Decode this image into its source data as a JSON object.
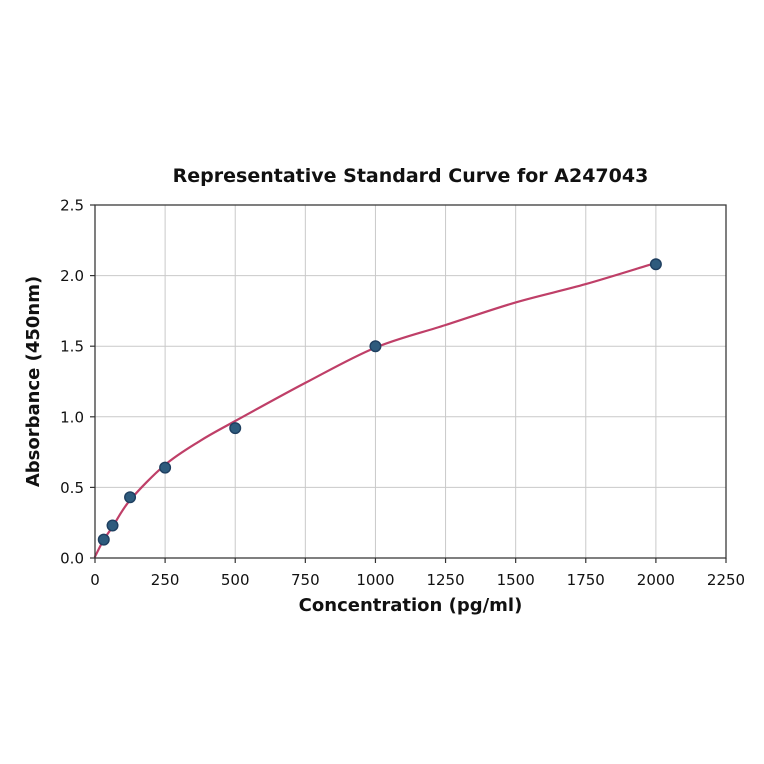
{
  "chart_data": {
    "type": "scatter",
    "title": "Representative Standard Curve for A247043",
    "xlabel": "Concentration (pg/ml)",
    "ylabel": "Absorbance (450nm)",
    "xlim": [
      0,
      2250
    ],
    "ylim": [
      0,
      2.5
    ],
    "grid": true,
    "legend": "none",
    "x_ticks": [
      0,
      250,
      500,
      750,
      1000,
      1250,
      1500,
      1750,
      2000,
      2250
    ],
    "x_tick_labels": [
      "0",
      "250",
      "500",
      "750",
      "1000",
      "1250",
      "1500",
      "1750",
      "2000",
      "2250"
    ],
    "y_ticks": [
      0.0,
      0.5,
      1.0,
      1.5,
      2.0,
      2.5
    ],
    "y_tick_labels": [
      "0.0",
      "0.5",
      "1.0",
      "1.5",
      "2.0",
      "2.5"
    ],
    "points": {
      "x": [
        31.25,
        62.5,
        125,
        250,
        500,
        1000,
        2000
      ],
      "y": [
        0.13,
        0.23,
        0.43,
        0.64,
        0.92,
        1.5,
        2.08
      ]
    },
    "fit_curve": {
      "x": [
        0,
        31.25,
        62.5,
        125,
        250,
        375,
        500,
        750,
        1000,
        1250,
        1500,
        1750,
        2000
      ],
      "y": [
        0.01,
        0.13,
        0.22,
        0.41,
        0.66,
        0.83,
        0.97,
        1.24,
        1.49,
        1.65,
        1.81,
        1.94,
        2.09
      ]
    },
    "colors": {
      "marker_fill": "#2e5b7d",
      "marker_edge": "#1f3f60",
      "curve": "#bf3f68",
      "grid": "#c9c9c9",
      "spine": "#3a3a3a",
      "tick": "#333333",
      "text": "#111111",
      "background": "#ffffff"
    }
  }
}
